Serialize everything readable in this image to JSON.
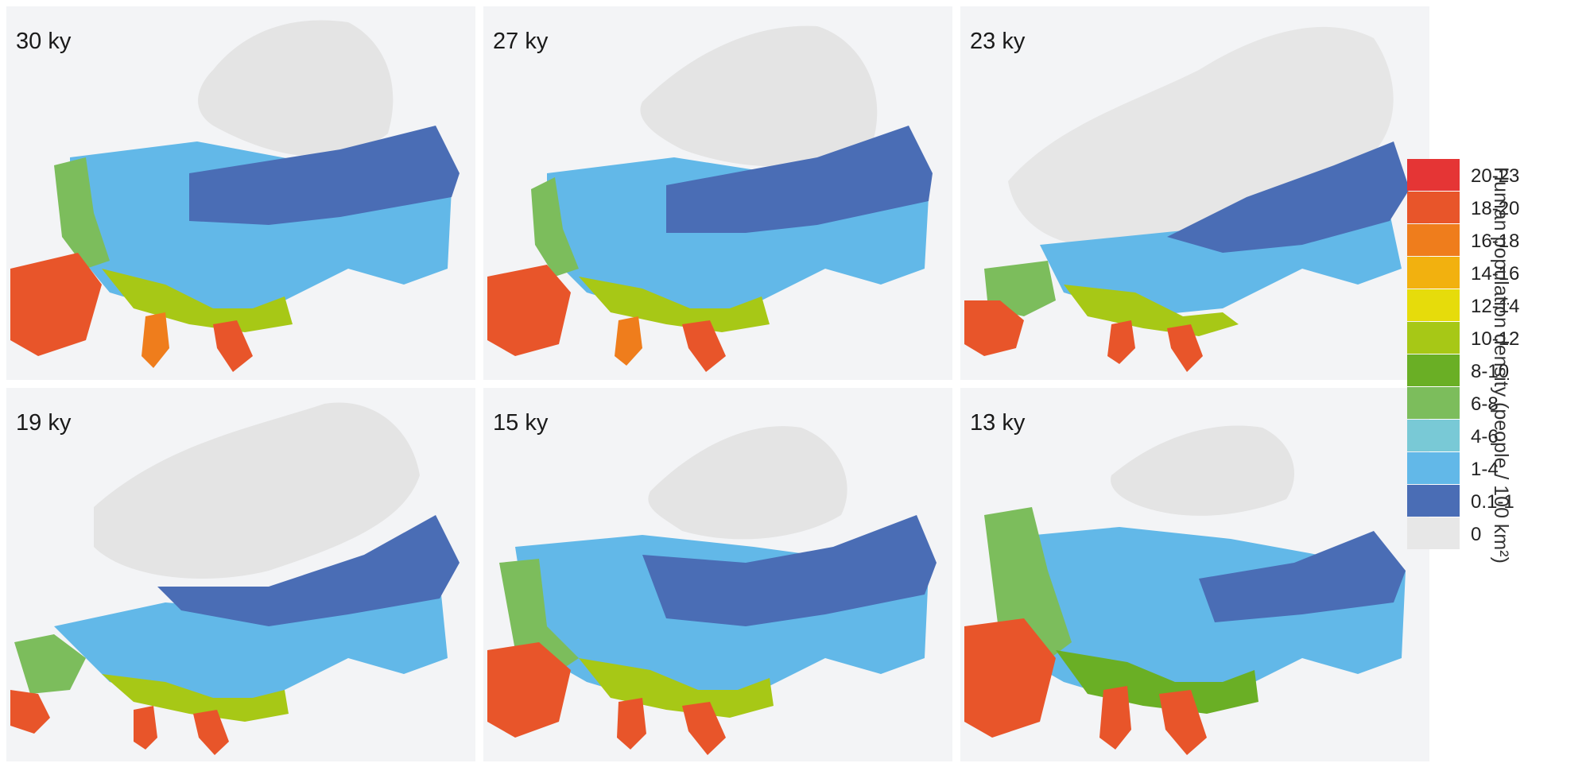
{
  "panels": [
    {
      "label": "30 ky"
    },
    {
      "label": "27 ky"
    },
    {
      "label": "23 ky"
    },
    {
      "label": "19 ky"
    },
    {
      "label": "15 ky"
    },
    {
      "label": "13 ky"
    }
  ],
  "legend": {
    "title": "Human population density (people / 100 km²)",
    "items": [
      {
        "label": "20-23",
        "color": "#e53535"
      },
      {
        "label": "18-20",
        "color": "#e8552a"
      },
      {
        "label": "16-18",
        "color": "#ef7d1c"
      },
      {
        "label": "14-16",
        "color": "#f2b10f"
      },
      {
        "label": "12-14",
        "color": "#e6dc0b"
      },
      {
        "label": "10-12",
        "color": "#a7c816"
      },
      {
        "label": "8-10",
        "color": "#6aaf25"
      },
      {
        "label": "6-8",
        "color": "#7cbd5c"
      },
      {
        "label": "4-6",
        "color": "#79c9d6"
      },
      {
        "label": "1-4",
        "color": "#62b8e8"
      },
      {
        "label": "0.1-1",
        "color": "#4a6db5"
      },
      {
        "label": "0",
        "color": "#e7e7e7"
      }
    ]
  }
}
